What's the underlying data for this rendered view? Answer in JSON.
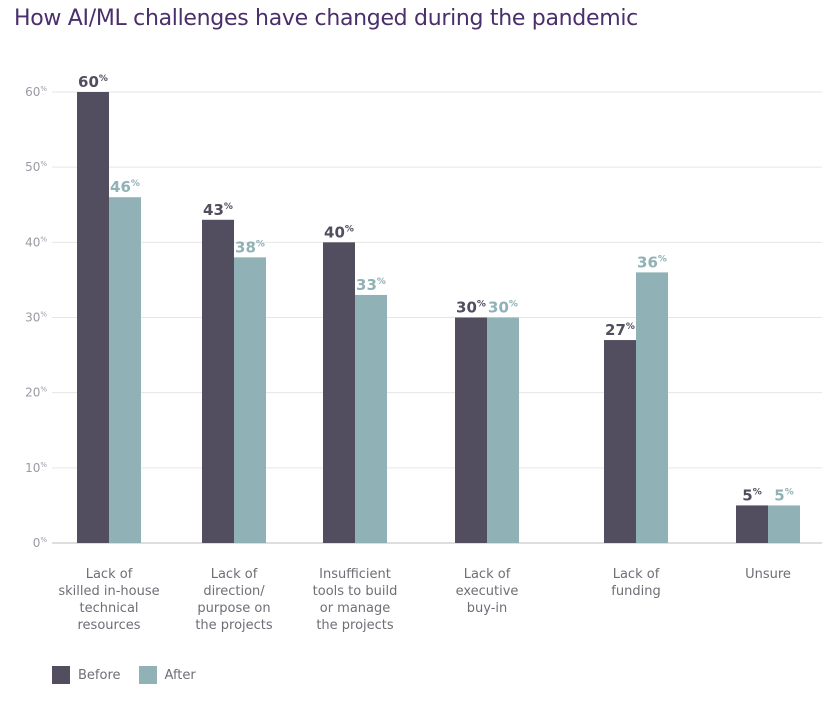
{
  "title": "How AI/ML challenges have changed during the pandemic",
  "colors": {
    "before": "#534e5f",
    "after": "#90b1b5",
    "grid": "#e6e6e6",
    "axis": "#bdbdbd"
  },
  "legend": {
    "before_label": "Before",
    "after_label": "After"
  },
  "chart_data": {
    "type": "bar",
    "title": "How AI/ML challenges have changed during the pandemic",
    "xlabel": "",
    "ylabel": "",
    "ylim": [
      0,
      60
    ],
    "yticks": [
      0,
      10,
      20,
      30,
      40,
      50,
      60
    ],
    "ytick_suffix": "%",
    "grid": true,
    "legend_position": "bottom-left",
    "categories": [
      [
        "Lack of",
        "skilled in-house",
        "technical",
        "resources"
      ],
      [
        "Lack of",
        "direction/",
        "purpose on",
        "the projects"
      ],
      [
        "Insufficient",
        "tools to build",
        "or manage",
        "the projects"
      ],
      [
        "Lack of",
        "executive",
        "buy-in"
      ],
      [
        "Lack of",
        "funding"
      ],
      [
        "Unsure"
      ]
    ],
    "series": [
      {
        "name": "Before",
        "values": [
          60,
          43,
          40,
          30,
          27,
          5
        ]
      },
      {
        "name": "After",
        "values": [
          46,
          38,
          33,
          30,
          36,
          5
        ]
      }
    ],
    "value_suffix": "%"
  }
}
